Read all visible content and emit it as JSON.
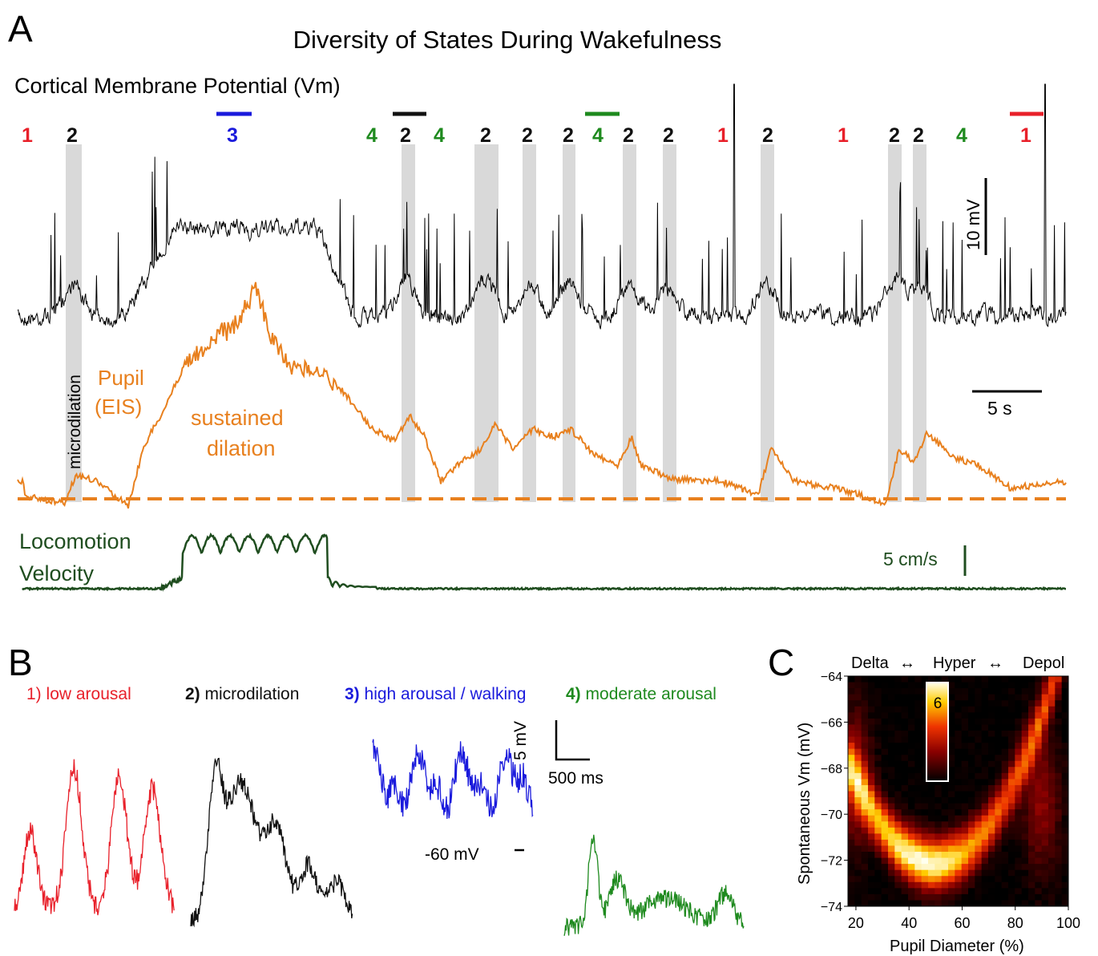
{
  "panel_a": {
    "letter": "A",
    "title": "Diversity of States During Wakefulness",
    "vm_label": "Cortical Membrane Potential (Vm)",
    "pupil_label_1": "Pupil",
    "pupil_label_2": "(EIS)",
    "sustained_1": "sustained",
    "sustained_2": "dilation",
    "microdilation_label": "microdilation",
    "loco_label_1": "Locomotion",
    "loco_label_2": "Velocity",
    "scale_vm": "10 mV",
    "scale_time": "5 s",
    "scale_velocity": "5 cm/s",
    "state_labels": [
      {
        "text": "1",
        "state": 1
      },
      {
        "text": "2",
        "state": 2
      },
      {
        "text": "3",
        "state": 3
      },
      {
        "text": "4",
        "state": 4
      },
      {
        "text": "2",
        "state": 2
      },
      {
        "text": "4",
        "state": 4
      },
      {
        "text": "2",
        "state": 2
      },
      {
        "text": "2",
        "state": 2
      },
      {
        "text": "2",
        "state": 2
      },
      {
        "text": "4",
        "state": 4
      },
      {
        "text": "2",
        "state": 2
      },
      {
        "text": "2",
        "state": 2
      },
      {
        "text": "1",
        "state": 1
      },
      {
        "text": "2",
        "state": 2
      },
      {
        "text": "1",
        "state": 1
      },
      {
        "text": "2",
        "state": 2
      },
      {
        "text": "2",
        "state": 2
      },
      {
        "text": "4",
        "state": 4
      },
      {
        "text": "1",
        "state": 1
      }
    ],
    "colors": {
      "state1": "#e8202a",
      "state2": "#111111",
      "state3": "#1a1adc",
      "state4": "#1e8a1e",
      "pupil": "#e8801e",
      "loco": "#1f4d1f",
      "shade": "#d9d9d9"
    }
  },
  "panel_b": {
    "letter": "B",
    "labels": [
      {
        "num": "1)",
        "text": " low arousal",
        "color": "#e8202a"
      },
      {
        "num": "2)",
        "text": " microdilation",
        "color": "#111111"
      },
      {
        "num": "3)",
        "text": " high arousal / walking",
        "color": "#1a1adc"
      },
      {
        "num": "4)",
        "text": " moderate arousal",
        "color": "#1e8a1e"
      }
    ],
    "scale_v": "5 mV",
    "scale_t": "500 ms",
    "ref_label": "-60 mV"
  },
  "panel_c": {
    "letter": "C",
    "header_left": "Delta",
    "header_mid": "Hyper",
    "header_right": "Depol",
    "colorbar_max": "6"
  },
  "chart_data": [
    {
      "type": "line",
      "panel": "A",
      "series": [
        {
          "name": "Cortical Membrane Potential (Vm)"
        },
        {
          "name": "Pupil (EIS)"
        },
        {
          "name": "Locomotion Velocity"
        }
      ],
      "state_sequence": [
        1,
        2,
        3,
        4,
        2,
        4,
        2,
        2,
        2,
        4,
        2,
        2,
        1,
        2,
        1,
        2,
        2,
        4,
        1
      ],
      "scale_bars": {
        "vm_mV": 10,
        "time_s": 5,
        "velocity_cm_s": 5
      }
    },
    {
      "type": "heatmap",
      "panel": "C",
      "xlabel": "Pupil Diameter (%)",
      "ylabel": "Spontaneous Vm (mV)",
      "xlim": [
        17,
        100
      ],
      "ylim": [
        -74,
        -64
      ],
      "xticks": [
        "20",
        "40",
        "60",
        "80",
        "100"
      ],
      "yticks": [
        "−64",
        "−66",
        "−68",
        "−70",
        "−72",
        "−74"
      ],
      "colorbar_range": [
        0,
        6
      ],
      "peak": {
        "x": 40,
        "y": -72
      }
    }
  ]
}
